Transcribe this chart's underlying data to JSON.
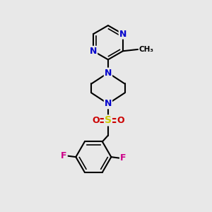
{
  "background_color": "#e8e8e8",
  "bond_color": "#000000",
  "N_color": "#0000cc",
  "F_color": "#cc0088",
  "S_color": "#cccc00",
  "O_color": "#cc0000",
  "figsize": [
    3.0,
    3.0
  ],
  "dpi": 100,
  "xlim": [
    0,
    10
  ],
  "ylim": [
    0,
    10
  ],
  "lw": 1.5,
  "fs": 9
}
